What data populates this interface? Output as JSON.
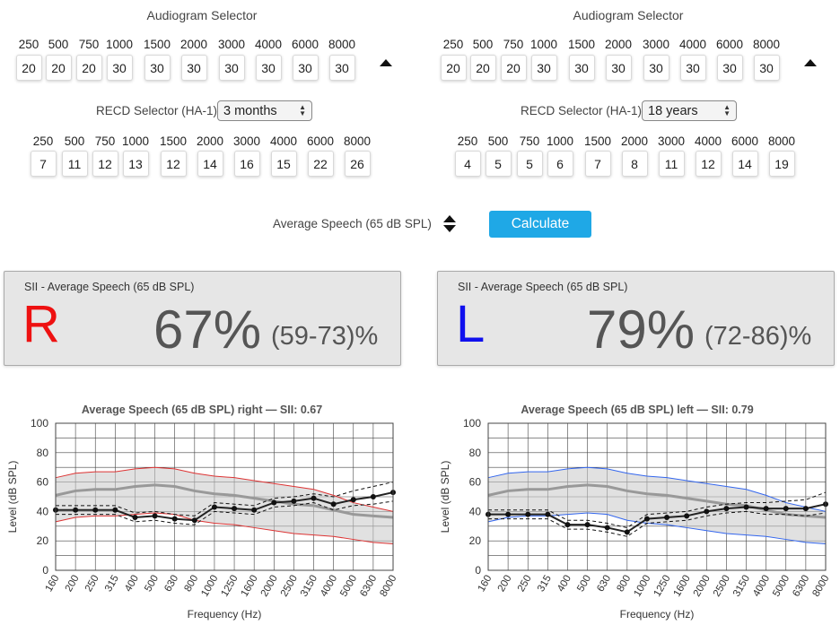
{
  "right": {
    "audiogram_title": "Audiogram Selector",
    "audiogram_freqs": [
      "250",
      "500",
      "750",
      "1000",
      "1500",
      "2000",
      "3000",
      "4000",
      "6000",
      "8000"
    ],
    "audiogram_values": [
      "20",
      "20",
      "20",
      "30",
      "30",
      "30",
      "30",
      "30",
      "30",
      "30"
    ],
    "recd_label": "RECD Selector (HA-1)",
    "recd_selected": "3 months",
    "recd_freqs": [
      "250",
      "500",
      "750",
      "1000",
      "1500",
      "2000",
      "3000",
      "4000",
      "6000",
      "8000"
    ],
    "recd_values": [
      "7",
      "11",
      "12",
      "13",
      "12",
      "14",
      "16",
      "15",
      "22",
      "26"
    ],
    "sii_title": "SII - Average Speech (65 dB SPL)",
    "sii_letter": "R",
    "sii_value": "67%",
    "sii_range": "(59-73)%",
    "letter_color": "#ee1111"
  },
  "left": {
    "audiogram_title": "Audiogram Selector",
    "audiogram_freqs": [
      "250",
      "500",
      "750",
      "1000",
      "1500",
      "2000",
      "3000",
      "4000",
      "6000",
      "8000"
    ],
    "audiogram_values": [
      "20",
      "20",
      "20",
      "30",
      "30",
      "30",
      "30",
      "30",
      "30",
      "30"
    ],
    "recd_label": "RECD Selector (HA-1)",
    "recd_selected": "18 years",
    "recd_freqs": [
      "250",
      "500",
      "750",
      "1000",
      "1500",
      "2000",
      "3000",
      "4000",
      "6000",
      "8000"
    ],
    "recd_values": [
      "4",
      "5",
      "5",
      "6",
      "7",
      "8",
      "11",
      "12",
      "14",
      "19"
    ],
    "sii_title": "SII - Average Speech (65 dB SPL)",
    "sii_letter": "L",
    "sii_value": "79%",
    "sii_range": "(72-86)%",
    "letter_color": "#1010ee"
  },
  "controls": {
    "speech_label": "Average Speech (65 dB SPL)",
    "calculate_label": "Calculate",
    "accent_color": "#1fa8e6"
  },
  "chart_data": [
    {
      "type": "line",
      "title": "Average Speech (65 dB SPL) right — SII: 0.67",
      "xlabel": "Frequency (Hz)",
      "ylabel": "Level (dB SPL)",
      "ylim": [
        0,
        100
      ],
      "yticks": [
        "0",
        "20",
        "40",
        "60",
        "80",
        "100"
      ],
      "categories": [
        "160",
        "200",
        "250",
        "315",
        "400",
        "500",
        "630",
        "800",
        "1000",
        "1250",
        "1600",
        "2000",
        "2500",
        "3150",
        "4000",
        "5000",
        "6300",
        "8000"
      ],
      "grid": true,
      "band_color": "#dd3333",
      "series": [
        {
          "role": "speech-upper",
          "values": [
            63,
            66,
            67,
            67,
            69,
            70,
            69,
            66,
            64,
            63,
            61,
            59,
            57,
            55,
            51,
            46,
            43,
            40
          ]
        },
        {
          "role": "speech-lower",
          "values": [
            33,
            36,
            37,
            37,
            38,
            39,
            38,
            34,
            32,
            31,
            29,
            27,
            25,
            24,
            23,
            21,
            19,
            18
          ]
        },
        {
          "role": "speech-mean",
          "values": [
            51,
            54,
            55,
            55,
            57,
            58,
            57,
            54,
            52,
            51,
            49,
            47,
            45,
            44,
            41,
            38,
            37,
            36
          ]
        },
        {
          "role": "threshold",
          "values": [
            41,
            41,
            41,
            41,
            36,
            37,
            35,
            34,
            43,
            42,
            41,
            46,
            47,
            49,
            45,
            48,
            50,
            53
          ]
        },
        {
          "role": "threshold-upper",
          "values": [
            44,
            44,
            44,
            44,
            39,
            40,
            38,
            37,
            46,
            45,
            44,
            49,
            50,
            52,
            50,
            54,
            57,
            60
          ]
        },
        {
          "role": "threshold-lower",
          "values": [
            38,
            38,
            38,
            38,
            33,
            34,
            32,
            31,
            40,
            39,
            38,
            43,
            44,
            46,
            41,
            44,
            45,
            47
          ]
        }
      ]
    },
    {
      "type": "line",
      "title": "Average Speech (65 dB SPL) left — SII: 0.79",
      "xlabel": "Frequency (Hz)",
      "ylabel": "Level (dB SPL)",
      "ylim": [
        0,
        100
      ],
      "yticks": [
        "0",
        "20",
        "40",
        "60",
        "80",
        "100"
      ],
      "categories": [
        "160",
        "200",
        "250",
        "315",
        "400",
        "500",
        "630",
        "800",
        "1000",
        "1250",
        "1600",
        "2000",
        "2500",
        "3150",
        "4000",
        "5000",
        "6300",
        "8000"
      ],
      "grid": true,
      "band_color": "#3366ee",
      "series": [
        {
          "role": "speech-upper",
          "values": [
            63,
            66,
            67,
            67,
            69,
            70,
            69,
            66,
            64,
            63,
            61,
            59,
            57,
            55,
            51,
            46,
            43,
            40
          ]
        },
        {
          "role": "speech-lower",
          "values": [
            33,
            36,
            37,
            37,
            38,
            39,
            38,
            34,
            32,
            31,
            29,
            27,
            25,
            24,
            23,
            21,
            19,
            18
          ]
        },
        {
          "role": "speech-mean",
          "values": [
            51,
            54,
            55,
            55,
            57,
            58,
            57,
            54,
            52,
            51,
            49,
            47,
            45,
            44,
            41,
            38,
            37,
            36
          ]
        },
        {
          "role": "threshold",
          "values": [
            38,
            38,
            38,
            38,
            31,
            31,
            29,
            26,
            35,
            36,
            37,
            40,
            42,
            43,
            42,
            42,
            42,
            45
          ]
        },
        {
          "role": "threshold-upper",
          "values": [
            41,
            41,
            41,
            41,
            34,
            34,
            32,
            29,
            38,
            39,
            40,
            43,
            45,
            46,
            46,
            47,
            48,
            53
          ]
        },
        {
          "role": "threshold-lower",
          "values": [
            35,
            35,
            35,
            35,
            28,
            28,
            26,
            23,
            32,
            33,
            34,
            37,
            39,
            40,
            38,
            38,
            37,
            39
          ]
        }
      ]
    }
  ]
}
